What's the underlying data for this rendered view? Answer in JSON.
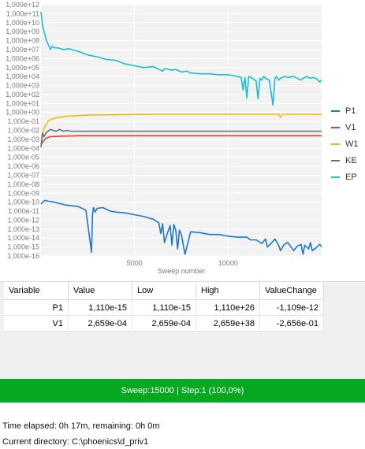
{
  "chart_data": {
    "type": "line",
    "xlabel": "Sweep number",
    "x_ticks": [
      5000,
      10000
    ],
    "xlim": [
      0,
      15000
    ],
    "yscale": "log",
    "ylim_exponent": [
      -16,
      12
    ],
    "y_tick_labels": [
      "1,000e+12",
      "1,000e+11",
      "1,000e+10",
      "1,000e+09",
      "1,000e+08",
      "1,000e+07",
      "1,000e+06",
      "1,000e+05",
      "1,000e+04",
      "1,000e+03",
      "1,000e+02",
      "1,000e+01",
      "1,000e+00",
      "1,000e-01",
      "1,000e-02",
      "1,000e-03",
      "1,000e-04",
      "1,000e-05",
      "1,000e-06",
      "1,000e-07",
      "1,000e-08",
      "1,000e-09",
      "1,000e-10",
      "1,000e-11",
      "1,000e-12",
      "1,000e-13",
      "1,000e-14",
      "1,000e-15",
      "1,000e-16"
    ],
    "legend_position": "right",
    "grid": true,
    "series": [
      {
        "name": "P1",
        "color": "#1f77c8",
        "x": [
          0,
          200,
          400,
          700,
          900,
          1100,
          1300,
          1600,
          2000,
          2400,
          2700,
          2750,
          2800,
          2900,
          3000,
          3300,
          3500,
          3700,
          4000,
          4500,
          5000,
          5500,
          6000,
          6300,
          6400,
          6500,
          6600,
          6800,
          6900,
          7000,
          7100,
          7200,
          7300,
          7400,
          7500,
          7700,
          8000,
          8500,
          9000,
          9500,
          10000,
          10500,
          11000,
          11200,
          11500,
          11800,
          12000,
          12100,
          12300,
          12500,
          12700,
          12800,
          13000,
          13200,
          13500,
          13700,
          13900,
          14000,
          14100,
          14300,
          14400,
          14500,
          14700,
          14900,
          15000
        ],
        "y": [
          -10.2,
          -9.8,
          -9.9,
          -10.0,
          -10.1,
          -10.2,
          -10.3,
          -10.4,
          -10.5,
          -10.9,
          -15.6,
          -11.5,
          -10.6,
          -11.1,
          -10.7,
          -10.6,
          -10.8,
          -11.0,
          -11.1,
          -11.2,
          -11.4,
          -11.6,
          -11.9,
          -12.3,
          -13.5,
          -12.4,
          -14.5,
          -13.2,
          -12.6,
          -14.8,
          -12.5,
          -13.1,
          -15.2,
          -13.1,
          -13.6,
          -15.8,
          -13.3,
          -13.4,
          -13.6,
          -13.6,
          -13.8,
          -13.9,
          -13.9,
          -14.2,
          -14.2,
          -14.6,
          -14.1,
          -15.0,
          -14.6,
          -14.1,
          -14.8,
          -15.4,
          -14.7,
          -14.5,
          -15.4,
          -14.9,
          -14.7,
          -15.8,
          -14.8,
          -15.2,
          -14.5,
          -15.4,
          -15.1,
          -14.7,
          -15.0
        ]
      },
      {
        "name": "V1",
        "color": "#e8401c",
        "x": [
          0,
          100,
          250,
          500,
          1000,
          2000,
          4000,
          7000,
          10000,
          13000,
          15000
        ],
        "y": [
          -3.6,
          -3.3,
          -2.9,
          -2.7,
          -2.65,
          -2.6,
          -2.6,
          -2.6,
          -2.6,
          -2.6,
          -2.6
        ]
      },
      {
        "name": "W1",
        "color": "#f2b911",
        "x": [
          0,
          150,
          400,
          800,
          1500,
          2500,
          4000,
          6000,
          8000,
          10000,
          12000,
          12700,
          12800,
          12900,
          15000
        ],
        "y": [
          -3.5,
          -1.8,
          -0.9,
          -0.6,
          -0.4,
          -0.3,
          -0.25,
          -0.2,
          -0.2,
          -0.2,
          -0.2,
          -0.2,
          -0.55,
          -0.2,
          -0.2
        ]
      },
      {
        "name": "KE",
        "color": "#5f7383",
        "x": [
          0,
          80,
          150,
          300,
          500,
          800,
          1000,
          1200,
          1400,
          1600,
          2000,
          3000,
          5000,
          8000,
          11000,
          15000
        ],
        "y": [
          -3.9,
          -2.3,
          -2.7,
          -2.2,
          -1.9,
          -2.1,
          -1.9,
          -2.1,
          -2.0,
          -2.1,
          -2.1,
          -2.1,
          -2.1,
          -2.1,
          -2.1,
          -2.1
        ]
      },
      {
        "name": "EP",
        "color": "#1bbcd6",
        "x": [
          0,
          100,
          300,
          500,
          600,
          700,
          900,
          1200,
          1500,
          1800,
          2000,
          2500,
          3000,
          3500,
          4000,
          4500,
          5000,
          5500,
          6000,
          6500,
          6600,
          6800,
          7000,
          7200,
          7500,
          7800,
          8000,
          8500,
          9000,
          9500,
          10000,
          10500,
          10700,
          10800,
          10900,
          11000,
          11100,
          11300,
          11500,
          11600,
          11700,
          11800,
          11900,
          12000,
          12200,
          12400,
          12500,
          12600,
          12700,
          12800,
          13000,
          13200,
          13500,
          13700,
          13900,
          14000,
          14200,
          14400,
          14500,
          14700,
          14900,
          15000
        ],
        "y": [
          11.2,
          9.5,
          8.0,
          7.0,
          7.4,
          7.2,
          7.2,
          7.0,
          7.1,
          6.9,
          6.8,
          6.4,
          6.2,
          5.9,
          5.8,
          5.4,
          5.2,
          5.0,
          5.1,
          4.6,
          4.9,
          4.8,
          4.7,
          4.8,
          4.5,
          4.6,
          4.4,
          4.3,
          4.3,
          4.2,
          4.2,
          4.0,
          3.9,
          2.5,
          3.9,
          1.6,
          4.0,
          3.8,
          3.5,
          1.5,
          3.8,
          3.6,
          4.0,
          3.8,
          3.6,
          0.8,
          3.8,
          4.0,
          3.6,
          3.8,
          4.0,
          3.9,
          4.0,
          3.8,
          3.6,
          3.8,
          4.0,
          3.8,
          3.9,
          3.8,
          3.4,
          3.6
        ]
      }
    ]
  },
  "table": {
    "headers": [
      "Variable",
      "Value",
      "Low",
      "High",
      "ValueChange"
    ],
    "rows": [
      [
        "P1",
        "1,110e-15",
        "1,110e-15",
        "1,110e+26",
        "-1,109e-12"
      ],
      [
        "V1",
        "2,659e-04",
        "2,659e-04",
        "2,659e+38",
        "-2,656e-01"
      ]
    ]
  },
  "status": {
    "text": "Sweep:15000 | Step:1  (100,0%)",
    "color": "#05a81f"
  },
  "info": {
    "time_elapsed": "Time elapsed: 0h 17m, remaining: 0h 0m",
    "current_directory": "Current directory:  C:\\phoenics\\d_priv1"
  }
}
